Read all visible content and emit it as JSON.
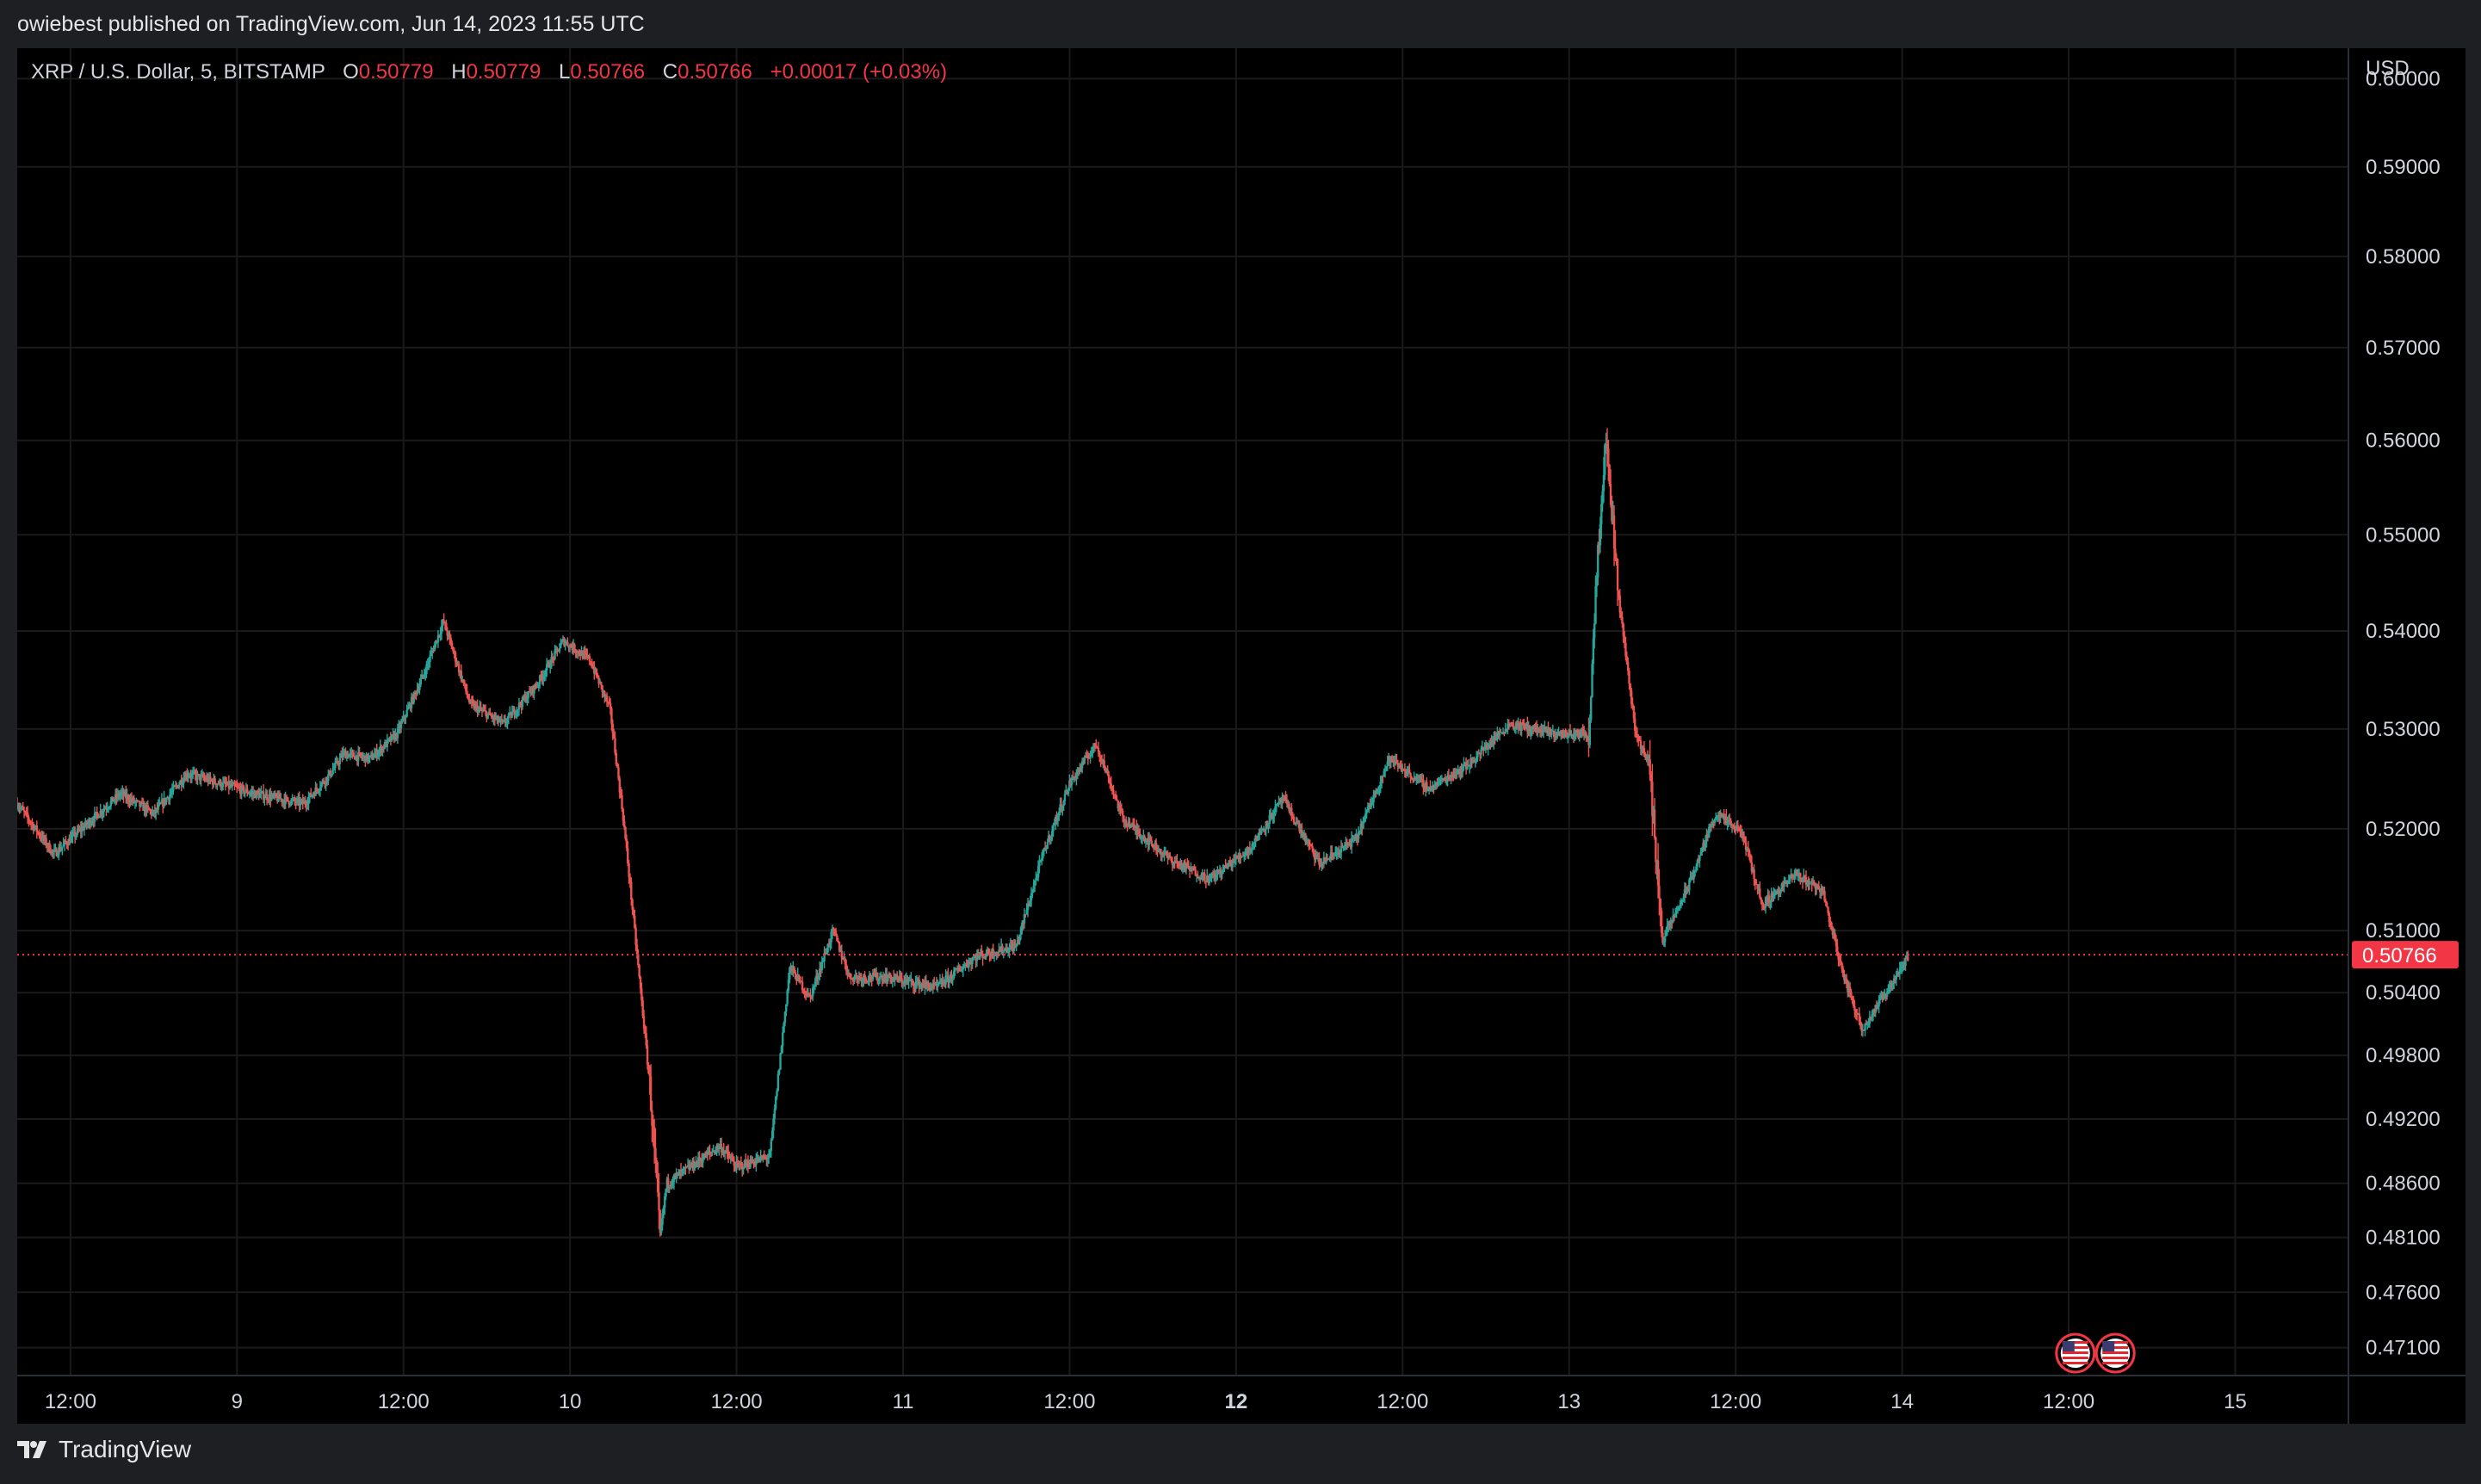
{
  "header": {
    "published_line": "owiebest published on TradingView.com, Jun 14, 2023 11:55 UTC"
  },
  "legend": {
    "symbol": "XRP / U.S. Dollar, 5, BITSTAMP",
    "open_label": "O",
    "open_value": "0.50779",
    "high_label": "H",
    "high_value": "0.50779",
    "low_label": "L",
    "low_value": "0.50766",
    "close_label": "C",
    "close_value": "0.50766",
    "change": "+0.00017 (+0.03%)"
  },
  "price_axis": {
    "currency": "USD",
    "current_price_label": "0.50766",
    "current_price": 0.50766
  },
  "colors": {
    "up": "#26a69a",
    "down": "#ef5350",
    "current_price": "#f23645",
    "grid": "#1a1a1a",
    "background": "#000000"
  },
  "events": [
    {
      "icon": "us-flag-icon",
      "time_index": 10.52
    },
    {
      "icon": "us-flag-icon",
      "time_index": 10.76
    }
  ],
  "footer": {
    "brand": "TradingView"
  },
  "chart_data": {
    "type": "candlestick",
    "title": "XRP / U.S. Dollar, 5, BITSTAMP",
    "x_tick_labels": [
      "12:00",
      "9",
      "12:00",
      "10",
      "12:00",
      "11",
      "12:00",
      "12",
      "12:00",
      "13",
      "12:00",
      "14",
      "12:00",
      "15"
    ],
    "x_tick_positions": [
      0.0,
      0.5,
      1.0,
      1.5,
      2.0,
      2.5,
      3.0,
      3.5,
      4.0,
      4.5,
      5.0,
      5.5,
      6.0,
      6.5
    ],
    "x_tick_bold": [
      false,
      false,
      false,
      false,
      false,
      false,
      false,
      true,
      false,
      false,
      false,
      false,
      false,
      false
    ],
    "x_range": [
      -0.16,
      6.84
    ],
    "y_tick_labels": [
      "0.60000",
      "0.59000",
      "0.58000",
      "0.57000",
      "0.56000",
      "0.55000",
      "0.54000",
      "0.53000",
      "0.52000",
      "0.51000",
      "0.50400",
      "0.49800",
      "0.49200",
      "0.48600",
      "0.48100",
      "0.47600",
      "0.47100"
    ],
    "y_scale": "log",
    "y_range": [
      0.4685,
      0.6035
    ],
    "price_path": [
      [
        -0.16,
        0.5225
      ],
      [
        -0.05,
        0.5175
      ],
      [
        0.05,
        0.5205
      ],
      [
        0.15,
        0.5235
      ],
      [
        0.25,
        0.5215
      ],
      [
        0.35,
        0.5255
      ],
      [
        0.45,
        0.5245
      ],
      [
        0.55,
        0.5235
      ],
      [
        0.7,
        0.5225
      ],
      [
        0.78,
        0.5255
      ],
      [
        0.82,
        0.5275
      ],
      [
        0.9,
        0.527
      ],
      [
        0.98,
        0.5295
      ],
      [
        1.06,
        0.5355
      ],
      [
        1.12,
        0.541
      ],
      [
        1.2,
        0.5325
      ],
      [
        1.3,
        0.5305
      ],
      [
        1.4,
        0.5345
      ],
      [
        1.48,
        0.539
      ],
      [
        1.56,
        0.537
      ],
      [
        1.62,
        0.532
      ],
      [
        1.66,
        0.521
      ],
      [
        1.7,
        0.508
      ],
      [
        1.74,
        0.495
      ],
      [
        1.77,
        0.481
      ],
      [
        1.79,
        0.486
      ],
      [
        1.86,
        0.4875
      ],
      [
        1.95,
        0.4895
      ],
      [
        2.0,
        0.4875
      ],
      [
        2.1,
        0.4885
      ],
      [
        2.16,
        0.5065
      ],
      [
        2.22,
        0.5035
      ],
      [
        2.29,
        0.51
      ],
      [
        2.34,
        0.5055
      ],
      [
        2.45,
        0.5055
      ],
      [
        2.6,
        0.5045
      ],
      [
        2.72,
        0.5075
      ],
      [
        2.84,
        0.5085
      ],
      [
        2.92,
        0.5175
      ],
      [
        3.0,
        0.5245
      ],
      [
        3.08,
        0.5285
      ],
      [
        3.16,
        0.521
      ],
      [
        3.3,
        0.517
      ],
      [
        3.42,
        0.515
      ],
      [
        3.54,
        0.518
      ],
      [
        3.64,
        0.523
      ],
      [
        3.75,
        0.5165
      ],
      [
        3.86,
        0.519
      ],
      [
        3.96,
        0.527
      ],
      [
        4.08,
        0.524
      ],
      [
        4.2,
        0.5265
      ],
      [
        4.32,
        0.5305
      ],
      [
        4.46,
        0.5295
      ],
      [
        4.56,
        0.5295
      ],
      [
        4.58,
        0.545
      ],
      [
        4.61,
        0.5605
      ],
      [
        4.65,
        0.543
      ],
      [
        4.7,
        0.5295
      ],
      [
        4.74,
        0.5265
      ],
      [
        4.78,
        0.509
      ],
      [
        4.86,
        0.5145
      ],
      [
        4.94,
        0.5215
      ],
      [
        5.02,
        0.5195
      ],
      [
        5.08,
        0.5125
      ],
      [
        5.18,
        0.5155
      ],
      [
        5.26,
        0.514
      ],
      [
        5.32,
        0.506
      ],
      [
        5.38,
        0.5005
      ],
      [
        5.46,
        0.5045
      ],
      [
        5.52,
        0.50766
      ]
    ]
  }
}
